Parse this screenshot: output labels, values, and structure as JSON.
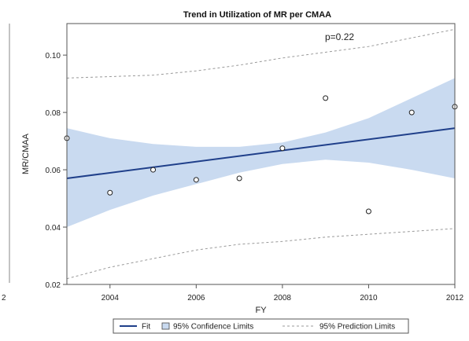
{
  "chart_data": {
    "type": "scatter",
    "title": "Trend in Utilization of MR per CMAA",
    "xlabel": "FY",
    "ylabel": "MR/CMAA",
    "xlim": [
      2003,
      2012
    ],
    "ylim": [
      0.02,
      0.111
    ],
    "x_ticks": [
      2004,
      2006,
      2008,
      2010,
      2012
    ],
    "y_ticks": [
      0.02,
      0.04,
      0.06,
      0.08,
      0.1
    ],
    "y_tick_labels": [
      "0.02",
      "0.04",
      "0.06",
      "0.08",
      "0.10"
    ],
    "grid": false,
    "annotation": "p=0.22",
    "points": [
      {
        "x": 2003,
        "y": 0.071
      },
      {
        "x": 2004,
        "y": 0.052
      },
      {
        "x": 2005,
        "y": 0.06
      },
      {
        "x": 2006,
        "y": 0.0565
      },
      {
        "x": 2007,
        "y": 0.057
      },
      {
        "x": 2008,
        "y": 0.0675
      },
      {
        "x": 2009,
        "y": 0.085
      },
      {
        "x": 2010,
        "y": 0.0455
      },
      {
        "x": 2011,
        "y": 0.08
      },
      {
        "x": 2012,
        "y": 0.082
      }
    ],
    "fit": {
      "x": [
        2003,
        2012
      ],
      "y": [
        0.057,
        0.0745
      ]
    },
    "confidence_band": {
      "x": [
        2003,
        2004,
        2005,
        2006,
        2007,
        2008,
        2009,
        2010,
        2011,
        2012
      ],
      "lower": [
        0.04,
        0.046,
        0.051,
        0.055,
        0.059,
        0.062,
        0.0635,
        0.0625,
        0.06,
        0.057
      ],
      "upper": [
        0.0745,
        0.071,
        0.069,
        0.068,
        0.068,
        0.0695,
        0.073,
        0.078,
        0.085,
        0.092
      ]
    },
    "prediction_band": {
      "x": [
        2003,
        2004,
        2005,
        2006,
        2007,
        2008,
        2009,
        2010,
        2011,
        2012
      ],
      "lower": [
        0.022,
        0.026,
        0.029,
        0.032,
        0.034,
        0.035,
        0.0365,
        0.0375,
        0.0385,
        0.0395
      ],
      "upper": [
        0.092,
        0.0925,
        0.093,
        0.0945,
        0.0965,
        0.099,
        0.101,
        0.103,
        0.106,
        0.109
      ]
    },
    "legend": {
      "placement": "bottom",
      "entries": [
        {
          "label": "Fit",
          "kind": "line"
        },
        {
          "label": "95% Confidence Limits",
          "kind": "band"
        },
        {
          "label": "95% Prediction Limits",
          "kind": "dashed"
        }
      ]
    },
    "colors": {
      "fit": "#1f3f8a",
      "band": "#c9daf0",
      "points": "#222222",
      "prediction": "#999999",
      "frame": "#555555"
    }
  },
  "edge": {
    "right_tick": "2"
  }
}
